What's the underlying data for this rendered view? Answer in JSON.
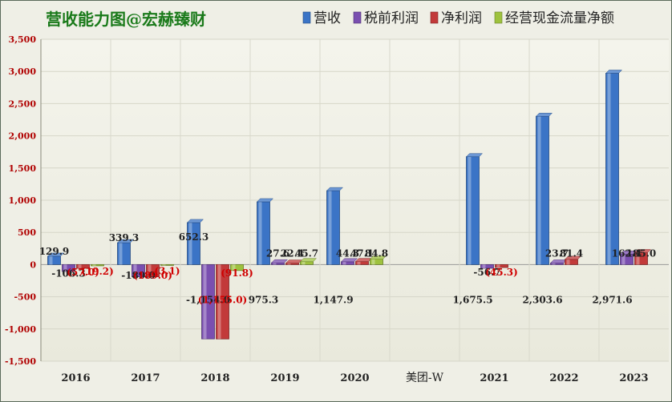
{
  "chart_data": {
    "type": "bar",
    "title": "营收能力图@宏赫臻财",
    "watermark": "美团-W",
    "categories": [
      "2016",
      "2017",
      "2018",
      "2019",
      "2020",
      "",
      "2021",
      "2022",
      "2023"
    ],
    "series": [
      {
        "name": "营收",
        "color": "#3b74c6",
        "values": [
          129.9,
          339.3,
          652.3,
          975.3,
          1147.9,
          null,
          1675.5,
          2303.6,
          2971.6
        ],
        "labels": [
          "129.9",
          "339.3",
          "652.3",
          "975.3",
          "1,147.9",
          "",
          "1,675.5",
          "2,303.6",
          "2,971.6"
        ]
      },
      {
        "name": "税前利润",
        "color": "#7a4fb0",
        "values": [
          -106.3,
          -189.0,
          -1154.0,
          27.6,
          44.3,
          null,
          -56.7,
          23.7,
          162.4
        ],
        "labels": [
          "-106.3",
          "-189.0",
          "-1,154.0",
          "27.6",
          "44.3",
          "",
          "-56.7",
          "23.7",
          "162.4"
        ]
      },
      {
        "name": "净利润",
        "color": "#c23a3a",
        "values": [
          -57.0,
          -189.0,
          -1155.0,
          22.4,
          47.1,
          null,
          -45.3,
          81.4,
          185.0
        ],
        "labels": [
          "(57.0)",
          "(189.0)",
          "(1,155.0)",
          "22.4",
          "47.1",
          "",
          "(45.3)",
          "81.4",
          "185.0"
        ]
      },
      {
        "name": "经营现金流量净额",
        "color": "#9ec23e",
        "values": [
          -19.2,
          -3.1,
          -91.8,
          45.7,
          84.8,
          null,
          null,
          null,
          null
        ],
        "labels": [
          "(19.2)",
          "(3.1)",
          "(91.8)",
          "45.7",
          "84.8",
          "",
          "",
          "",
          ""
        ]
      }
    ],
    "ylim": [
      -1500,
      3500
    ],
    "yticks": [
      -1500,
      -1000,
      -500,
      0,
      500,
      1000,
      1500,
      2000,
      2500,
      3000,
      3500
    ],
    "ytick_labels": [
      "-1,500",
      "-1,000",
      "-500",
      "0",
      "500",
      "1,000",
      "1,500",
      "2,000",
      "2,500",
      "3,000",
      "3,500"
    ],
    "legend_position": "top-right",
    "grid": true
  }
}
